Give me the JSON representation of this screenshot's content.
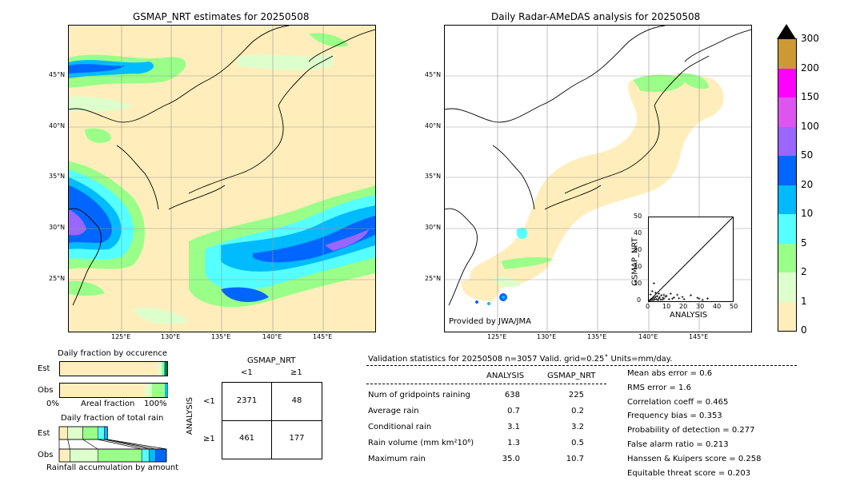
{
  "maps": {
    "left_title": "GSMAP_NRT estimates for 20250508",
    "right_title": "Daily Radar-AMeDAS analysis for 20250508",
    "provided_by": "Provided by JWA/JMA",
    "lat_labels": [
      "45°N",
      "40°N",
      "35°N",
      "30°N",
      "25°N"
    ],
    "lon_labels": [
      "125°E",
      "130°E",
      "135°E",
      "140°E",
      "145°E"
    ]
  },
  "colorbar": {
    "labels": [
      "300",
      "200",
      "150",
      "100",
      "50",
      "20",
      "10",
      "5",
      "2",
      "1",
      "0"
    ],
    "colors": [
      "#cc9933",
      "#ff00ff",
      "#dd55ee",
      "#9966ff",
      "#0066ff",
      "#00bbff",
      "#55ffff",
      "#99ff88",
      "#ddffcc",
      "#ffeebb"
    ]
  },
  "chart_data": [
    {
      "type": "scatter",
      "xlabel": "ANALYSIS",
      "ylabel": "GSMAP_NRT",
      "xlim": [
        0,
        50
      ],
      "ylim": [
        0,
        50
      ],
      "x_ticks": [
        "0",
        "10",
        "20",
        "30",
        "40",
        "50"
      ],
      "y_ticks": [
        "0",
        "10",
        "20",
        "30",
        "40",
        "50"
      ],
      "points": [
        [
          0.5,
          0.5
        ],
        [
          1,
          1
        ],
        [
          1.5,
          0.8
        ],
        [
          2,
          1.5
        ],
        [
          2.5,
          0.6
        ],
        [
          3,
          2
        ],
        [
          3.5,
          1
        ],
        [
          4,
          2.5
        ],
        [
          4.5,
          1.2
        ],
        [
          5,
          3
        ],
        [
          5.5,
          0.7
        ],
        [
          6,
          1.8
        ],
        [
          6.5,
          2.4
        ],
        [
          7,
          1
        ],
        [
          7.5,
          3.5
        ],
        [
          8,
          0.9
        ],
        [
          8.5,
          2
        ],
        [
          9,
          1.5
        ],
        [
          10,
          2.8
        ],
        [
          10.5,
          3.2
        ],
        [
          12,
          1.2
        ],
        [
          13,
          4.5
        ],
        [
          14,
          1.5
        ],
        [
          15,
          2.2
        ],
        [
          17,
          3.8
        ],
        [
          18,
          1.8
        ],
        [
          20,
          2.5
        ],
        [
          21,
          1.2
        ],
        [
          25,
          3.5
        ],
        [
          29,
          2
        ],
        [
          30,
          1.5
        ],
        [
          32,
          0.8
        ],
        [
          35,
          1.6
        ],
        [
          2,
          6
        ],
        [
          3,
          10.7
        ],
        [
          4,
          5
        ],
        [
          1,
          4
        ],
        [
          6,
          4.5
        ],
        [
          9,
          3.8
        ]
      ]
    },
    {
      "type": "bar",
      "title": "Daily fraction by occurence",
      "categories": [
        "Est",
        "Obs"
      ],
      "xlabel": "Areal fraction",
      "x_ticks": [
        "0%",
        "100%"
      ],
      "segments": [
        [
          0.92,
          0.03,
          0.02,
          0.01
        ],
        [
          0.79,
          0.07,
          0.12,
          0.02
        ]
      ]
    },
    {
      "type": "bar",
      "title": "Daily fraction of total rain",
      "categories": [
        "Est",
        "Obs"
      ],
      "xlabel": "Rainfall accumulation by amount",
      "segments": [
        [
          0.08,
          0.14,
          0.14,
          0.06,
          0.03
        ],
        [
          0.1,
          0.26,
          0.41,
          0.07,
          0.06,
          0.1
        ]
      ]
    }
  ],
  "contingency": {
    "title": "GSMAP_NRT",
    "col_labels": [
      "<1",
      "≥1"
    ],
    "row_axis": "ANALYSIS",
    "row_labels": [
      "<1",
      "≥1"
    ],
    "cells": [
      [
        "2371",
        "48"
      ],
      [
        "461",
        "177"
      ]
    ]
  },
  "validation": {
    "header": "Validation statistics for 20250508  n=3057 Valid. grid=0.25˚ Units=mm/day.",
    "col_analysis": "ANALYSIS",
    "col_gsmap": "GSMAP_NRT",
    "rows": [
      {
        "label": "Num of gridpoints raining",
        "analysis": "638",
        "gsmap": "225"
      },
      {
        "label": "Average rain",
        "analysis": "0.7",
        "gsmap": "0.2"
      },
      {
        "label": "Conditional rain",
        "analysis": "3.1",
        "gsmap": "3.2"
      },
      {
        "label": "Rain volume (mm km²10⁶)",
        "analysis": "1.3",
        "gsmap": "0.5"
      },
      {
        "label": "Maximum rain",
        "analysis": "35.0",
        "gsmap": "10.7"
      }
    ],
    "scores": [
      "Mean abs error =    0.6",
      "RMS error =    1.6",
      "Correlation coeff =  0.465",
      "Frequency bias =  0.353",
      "Probability of detection =  0.277",
      "False alarm ratio =  0.213",
      "Hanssen & Kuipers score =  0.258",
      "Equitable threat score =  0.203"
    ]
  }
}
